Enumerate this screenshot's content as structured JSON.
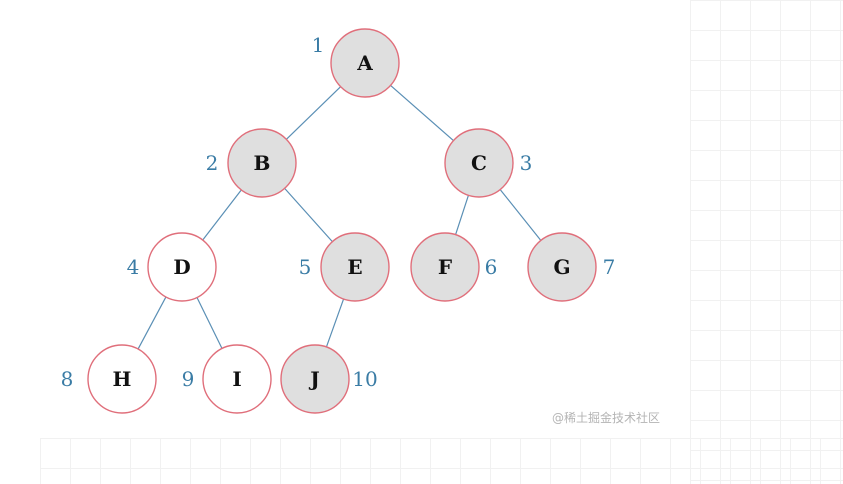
{
  "tree": {
    "nodes": [
      {
        "id": "A",
        "label": "A",
        "index": "1",
        "filled": true
      },
      {
        "id": "B",
        "label": "B",
        "index": "2",
        "filled": true
      },
      {
        "id": "C",
        "label": "C",
        "index": "3",
        "filled": true
      },
      {
        "id": "D",
        "label": "D",
        "index": "4",
        "filled": false
      },
      {
        "id": "E",
        "label": "E",
        "index": "5",
        "filled": true
      },
      {
        "id": "F",
        "label": "F",
        "index": "6",
        "filled": true
      },
      {
        "id": "G",
        "label": "G",
        "index": "7",
        "filled": true
      },
      {
        "id": "H",
        "label": "H",
        "index": "8",
        "filled": false
      },
      {
        "id": "I",
        "label": "I",
        "index": "9",
        "filled": false
      },
      {
        "id": "J",
        "label": "J",
        "index": "10",
        "filled": true
      }
    ],
    "edges": [
      [
        "A",
        "B"
      ],
      [
        "A",
        "C"
      ],
      [
        "B",
        "D"
      ],
      [
        "B",
        "E"
      ],
      [
        "C",
        "F"
      ],
      [
        "C",
        "G"
      ],
      [
        "D",
        "H"
      ],
      [
        "D",
        "I"
      ],
      [
        "E",
        "J"
      ]
    ]
  },
  "colors": {
    "node_fill": "#dfdfdf",
    "node_empty_fill": "#ffffff",
    "node_stroke": "#e06f7b",
    "edge": "#5a8fb5",
    "index_text": "#3a7ca5",
    "label_text": "#111111"
  },
  "watermark": "@稀土掘金技术社区"
}
